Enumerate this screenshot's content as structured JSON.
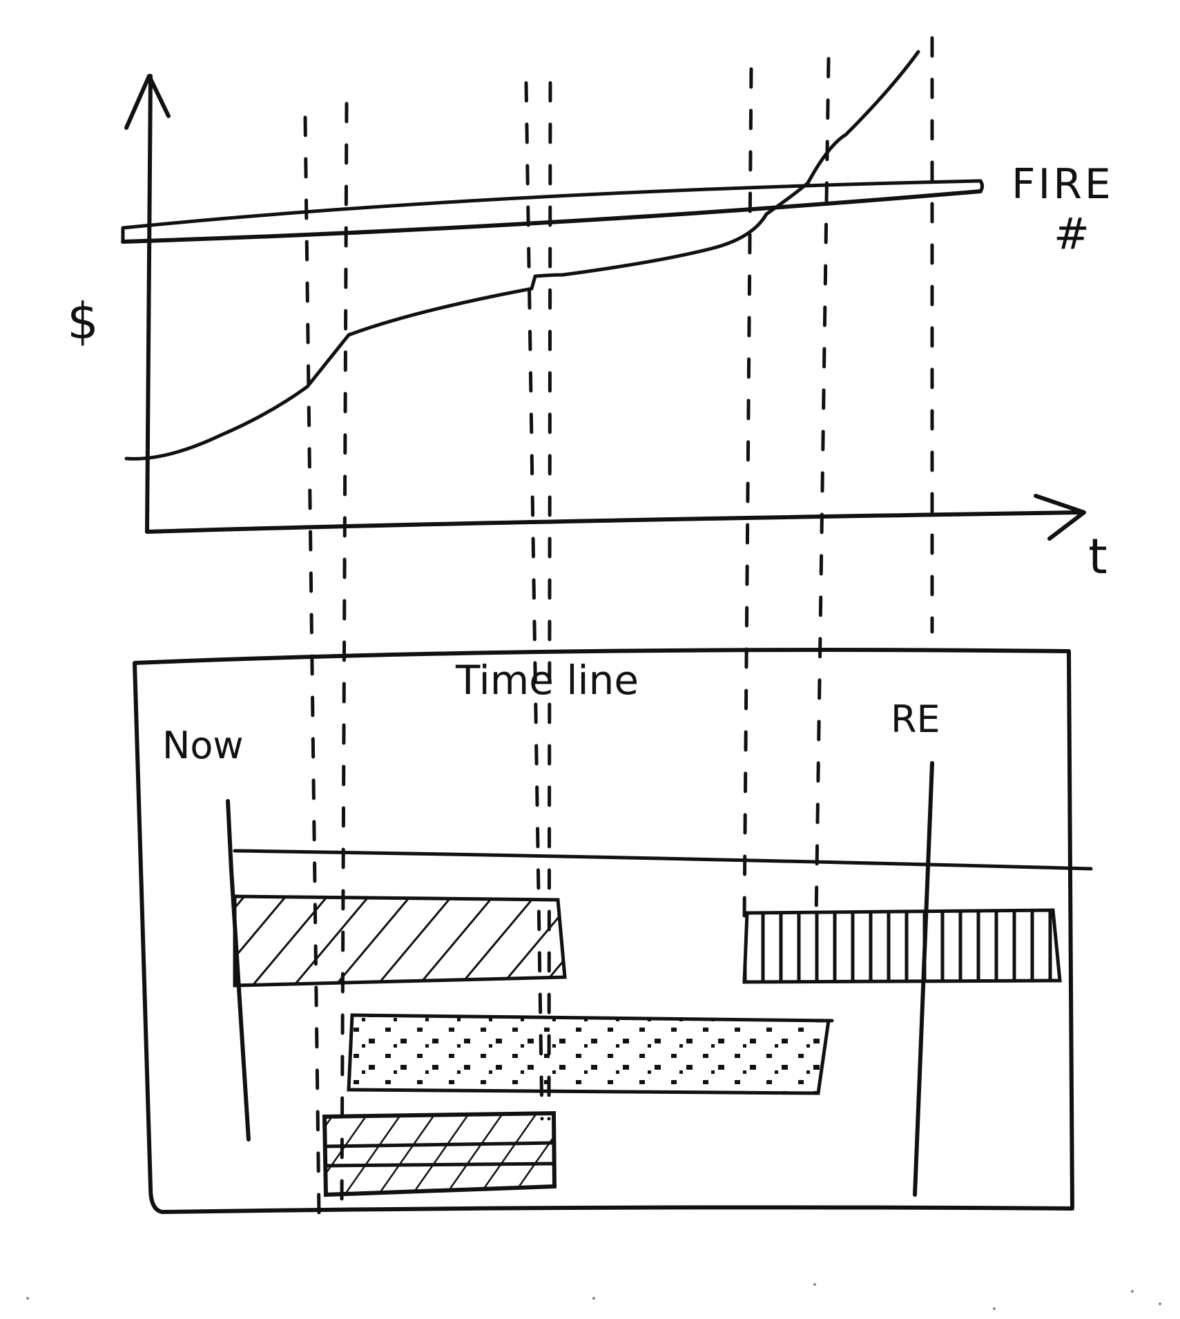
{
  "chart": {
    "y_axis_label": "$",
    "x_axis_label": "t",
    "threshold_label_line1": "FIRE",
    "threshold_label_line2": "#"
  },
  "timeline": {
    "title": "Time line",
    "now_label": "Now",
    "re_label": "RE"
  },
  "colors": {
    "ink": "#111111",
    "paper": "#ffffff"
  }
}
